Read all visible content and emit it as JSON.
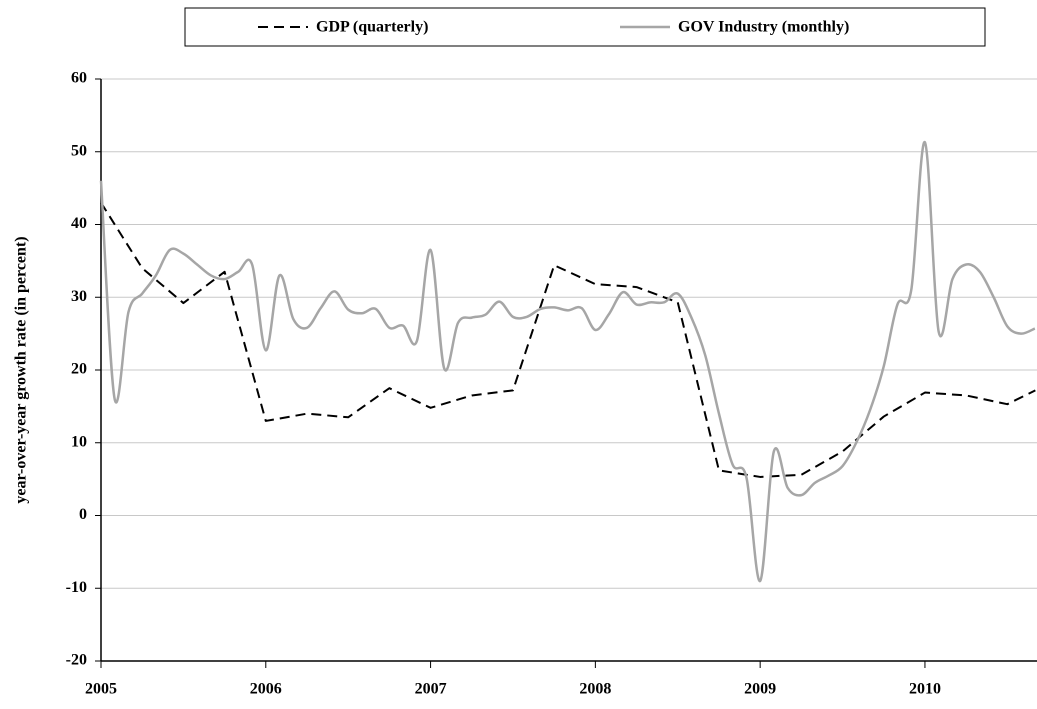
{
  "chart_data": {
    "type": "line",
    "y_label": "year-over-year growth rate (in percent)",
    "xlim": [
      2005,
      2010.68
    ],
    "xticks": [
      2005,
      2006,
      2007,
      2008,
      2009,
      2010
    ],
    "ylim": [
      -20,
      60
    ],
    "yticks": [
      -20,
      -10,
      0,
      10,
      20,
      30,
      40,
      50,
      60
    ],
    "grid": true,
    "legend": "top",
    "series": [
      {
        "name": "GDP (quarterly)",
        "color": "#000000",
        "style": "dashed",
        "x": [
          2005,
          2005.25,
          2005.5,
          2005.75,
          2006,
          2006.25,
          2006.5,
          2006.75,
          2007,
          2007.25,
          2007.5,
          2007.75,
          2008,
          2008.25,
          2008.5,
          2008.75,
          2009,
          2009.25,
          2009.5,
          2009.75,
          2010,
          2010.25,
          2010.5,
          2010.67
        ],
        "values": [
          43,
          34,
          29.2,
          33.5,
          13,
          14,
          13.5,
          17.5,
          14.8,
          16.5,
          17.2,
          34.4,
          31.8,
          31.4,
          29.3,
          6.2,
          5.3,
          5.6,
          8.8,
          13.6,
          16.9,
          16.5,
          15.3,
          17.2
        ]
      },
      {
        "name": "GOV Industry (monthly)",
        "color": "#a6a6a6",
        "style": "solid",
        "x": [
          2005,
          2005.083,
          2005.167,
          2005.25,
          2005.333,
          2005.417,
          2005.5,
          2005.583,
          2005.667,
          2005.75,
          2005.833,
          2005.917,
          2006,
          2006.083,
          2006.167,
          2006.25,
          2006.333,
          2006.417,
          2006.5,
          2006.583,
          2006.667,
          2006.75,
          2006.833,
          2006.917,
          2007,
          2007.083,
          2007.167,
          2007.25,
          2007.333,
          2007.417,
          2007.5,
          2007.583,
          2007.667,
          2007.75,
          2007.833,
          2007.917,
          2008,
          2008.083,
          2008.167,
          2008.25,
          2008.333,
          2008.417,
          2008.5,
          2008.583,
          2008.667,
          2008.75,
          2008.833,
          2008.917,
          2009,
          2009.083,
          2009.167,
          2009.25,
          2009.333,
          2009.417,
          2009.5,
          2009.583,
          2009.667,
          2009.75,
          2009.833,
          2009.917,
          2010,
          2010.083,
          2010.167,
          2010.25,
          2010.333,
          2010.417,
          2010.5,
          2010.583,
          2010.667
        ],
        "values": [
          46,
          16,
          28,
          30.5,
          33,
          36.5,
          36,
          34.5,
          33,
          32.5,
          33.5,
          34.5,
          22.7,
          33,
          27,
          25.8,
          28.5,
          30.8,
          28.3,
          27.8,
          28.4,
          25.8,
          26.1,
          24,
          36.5,
          20.2,
          26.5,
          27.2,
          27.6,
          29.4,
          27.3,
          27.3,
          28.4,
          28.6,
          28.2,
          28.5,
          25.5,
          27.7,
          30.7,
          29,
          29.3,
          29.3,
          30.5,
          27.2,
          22,
          14,
          7,
          5.2,
          -9,
          8.8,
          3.8,
          2.8,
          4.5,
          5.5,
          6.8,
          10,
          14.5,
          20.5,
          29,
          31,
          51.3,
          25.3,
          32.5,
          34.5,
          33.5,
          30,
          26,
          25,
          25.7
        ]
      }
    ]
  }
}
